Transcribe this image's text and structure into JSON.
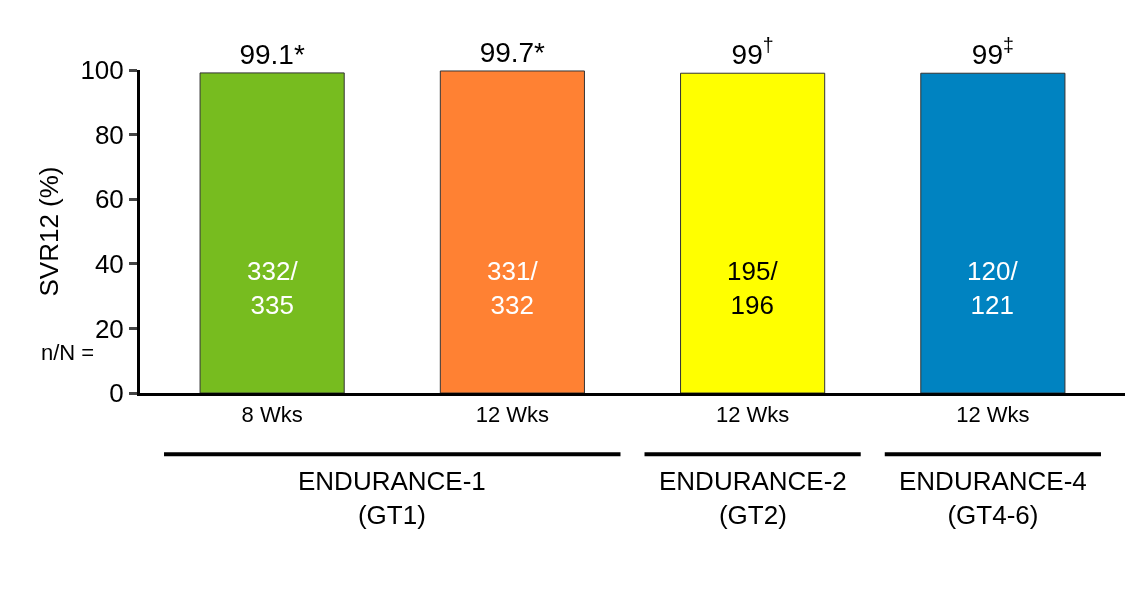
{
  "chart_data": {
    "type": "bar",
    "ylabel": "SVR12 (%)",
    "categories": [
      "8 Wks",
      "12 Wks",
      "12 Wks",
      "12 Wks"
    ],
    "values": [
      99.1,
      99.7,
      99,
      99
    ],
    "colors": [
      "#77bc1f",
      "#ff8133",
      "#ffff00",
      "#0083c1"
    ],
    "value_labels": [
      "99.1*",
      "99.7*",
      "99$^{†}$",
      "99$^{‡}$"
    ],
    "ylim": [
      0,
      100
    ],
    "yticks": [
      0,
      20,
      40,
      60,
      80,
      100
    ],
    "annotations": [
      "332/\n335",
      "331/\n332",
      "195/\n196",
      "120/\n121",
      "ENDURANCE-1\n(GT1)",
      "ENDURANCE-2\n(GT2)",
      "ENDURANCE-4\n(GT4-6)",
      "n/N ="
    ]
  }
}
